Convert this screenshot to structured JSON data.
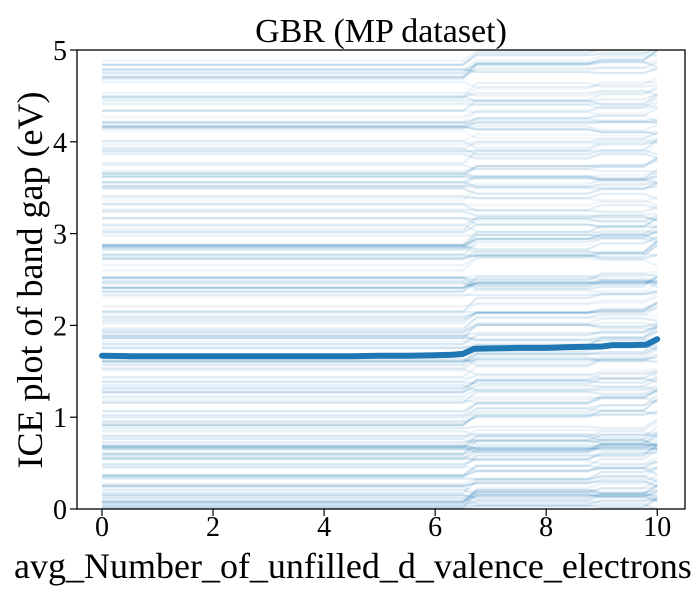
{
  "chart_data": {
    "type": "line",
    "title": "GBR (MP dataset)",
    "xlabel": "avg_Number_of_unfilled_d_valence_electrons",
    "ylabel": "ICE plot of band gap (eV)",
    "xlim": [
      -0.45,
      10.5
    ],
    "ylim": [
      0,
      5
    ],
    "xticks": [
      0,
      2,
      4,
      6,
      8,
      10
    ],
    "xtick_labels": [
      "0",
      "2",
      "4",
      "6",
      "8",
      "10"
    ],
    "yticks": [
      0,
      1,
      2,
      3,
      4,
      5
    ],
    "ytick_labels": [
      "0",
      "1",
      "2",
      "3",
      "4",
      "5"
    ],
    "grid": false,
    "legend": "none",
    "ice_color": "#1f77b4",
    "ice_line_count": 220,
    "ice_x_range": [
      0,
      10
    ],
    "ice_y_range": [
      0,
      4.9
    ],
    "ice_steps": [
      {
        "x": 6.7,
        "dy": 0.06
      },
      {
        "x": 9.0,
        "dy": 0.03
      },
      {
        "x": 10.0,
        "dy": 0.05
      }
    ],
    "series": [
      {
        "name": "",
        "color": "#1f77b4",
        "x": [
          0,
          0.5,
          1,
          1.5,
          2,
          2.5,
          3,
          3.5,
          4,
          4.5,
          5,
          5.5,
          6,
          6.3,
          6.5,
          6.7,
          7,
          7.5,
          8,
          8.5,
          9,
          9.2,
          9.5,
          9.8,
          10
        ],
        "values": [
          1.67,
          1.665,
          1.665,
          1.665,
          1.665,
          1.665,
          1.665,
          1.665,
          1.665,
          1.665,
          1.67,
          1.67,
          1.675,
          1.68,
          1.69,
          1.745,
          1.75,
          1.755,
          1.755,
          1.765,
          1.77,
          1.785,
          1.785,
          1.79,
          1.85
        ]
      }
    ]
  }
}
